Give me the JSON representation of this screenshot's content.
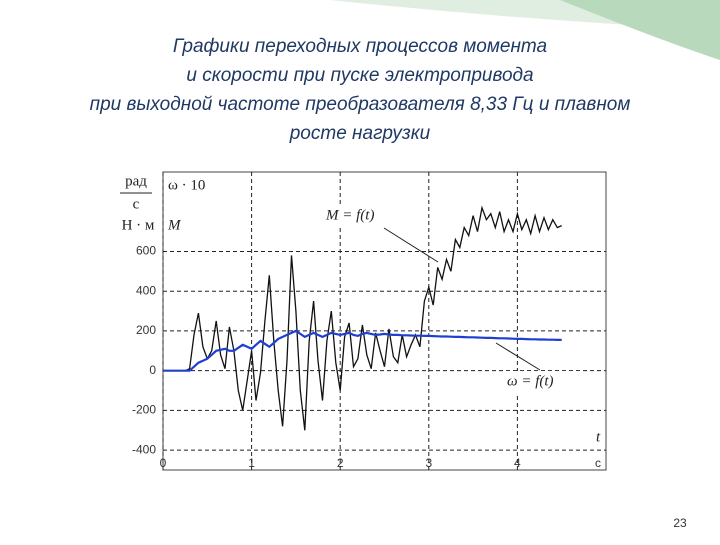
{
  "chart_data": {
    "type": "line",
    "title_lines": [
      "Графики переходных процессов момента",
      "и скорости  при пуске электропривода",
      "при выходной частоте преобразователя  8,33 Гц и плавном",
      "росте нагрузки"
    ],
    "y_axis_labels": [
      "рад",
      "с",
      "Н · м"
    ],
    "x_label": "t",
    "x_unit": "с",
    "x": [
      0,
      0.05,
      0.1,
      0.15,
      0.2,
      0.25,
      0.3,
      0.35,
      0.4,
      0.45,
      0.5,
      0.55,
      0.6,
      0.65,
      0.7,
      0.75,
      0.8,
      0.85,
      0.9,
      0.95,
      1,
      1.05,
      1.1,
      1.15,
      1.2,
      1.25,
      1.3,
      1.35,
      1.4,
      1.45,
      1.5,
      1.55,
      1.6,
      1.65,
      1.7,
      1.75,
      1.8,
      1.85,
      1.9,
      1.95,
      2,
      2.05,
      2.1,
      2.15,
      2.2,
      2.25,
      2.3,
      2.35,
      2.4,
      2.45,
      2.5,
      2.55,
      2.6,
      2.65,
      2.7,
      2.75,
      2.8,
      2.85,
      2.9,
      2.95,
      3,
      3.05,
      3.1,
      3.15,
      3.2,
      3.25,
      3.3,
      3.35,
      3.4,
      3.45,
      3.5,
      3.55,
      3.6,
      3.65,
      3.7,
      3.75,
      3.8,
      3.85,
      3.9,
      3.95,
      4,
      4.05,
      4.1,
      4.15,
      4.2,
      4.25,
      4.3,
      4.35,
      4.4,
      4.45,
      4.5
    ],
    "series": [
      {
        "name": "M = f(t)",
        "symbol": "M",
        "color": "#111111",
        "values": [
          0,
          0,
          0,
          0,
          0,
          0,
          10,
          180,
          290,
          120,
          60,
          100,
          250,
          80,
          10,
          220,
          100,
          -100,
          -200,
          -50,
          100,
          -150,
          -10,
          250,
          480,
          150,
          -100,
          -280,
          50,
          580,
          300,
          -100,
          -300,
          150,
          350,
          50,
          -150,
          150,
          300,
          40,
          -100,
          170,
          240,
          20,
          60,
          230,
          80,
          10,
          190,
          100,
          20,
          210,
          70,
          40,
          180,
          70,
          130,
          180,
          120,
          350,
          420,
          330,
          520,
          460,
          560,
          500,
          660,
          620,
          720,
          680,
          780,
          700,
          820,
          760,
          790,
          720,
          800,
          700,
          760,
          700,
          790,
          710,
          760,
          690,
          780,
          700,
          770,
          710,
          760,
          720,
          730
        ]
      },
      {
        "name": "ω = f(t)",
        "symbol": "ω · 10",
        "color": "#1f3fd0",
        "values": [
          0,
          0,
          0,
          0,
          0,
          0,
          0,
          20,
          40,
          50,
          60,
          80,
          100,
          105,
          110,
          100,
          100,
          115,
          130,
          120,
          110,
          130,
          150,
          135,
          120,
          140,
          160,
          170,
          180,
          190,
          200,
          185,
          170,
          180,
          190,
          180,
          170,
          180,
          190,
          185,
          180,
          185,
          190,
          180,
          175,
          185,
          190,
          185,
          180,
          182,
          185,
          182,
          180,
          180,
          178,
          178,
          177,
          176,
          176,
          175,
          175,
          174,
          173,
          172,
          172,
          171,
          170,
          170,
          169,
          168,
          168,
          167,
          166,
          165,
          165,
          164,
          163,
          163,
          162,
          161,
          160,
          160,
          159,
          158,
          158,
          157,
          157,
          156,
          156,
          155,
          155
        ]
      }
    ],
    "xlim": [
      0,
      5
    ],
    "ylim": [
      -500,
      1000
    ],
    "xticks": [
      0,
      1,
      2,
      3,
      4
    ],
    "yticks": [
      -400,
      -200,
      0,
      200,
      400,
      600
    ],
    "grid": true,
    "page_number": "23"
  }
}
